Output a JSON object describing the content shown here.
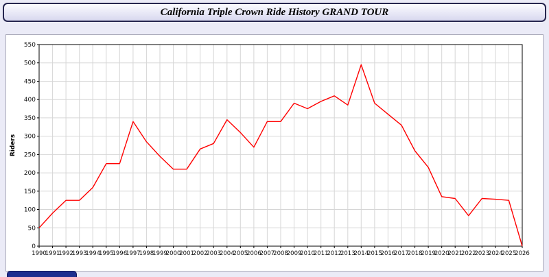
{
  "header": {
    "title": "California Triple Crown Ride History GRAND TOUR"
  },
  "colors": {
    "page_bg": "#ebebf7",
    "accent_navy": "#1e2f8f",
    "line": "#ff0000",
    "grid": "#d6d6d6"
  },
  "chart_data": {
    "type": "line",
    "title": "California Triple Crown Ride History GRAND TOUR",
    "xlabel": "",
    "ylabel": "Riders",
    "ylim": [
      0,
      550
    ],
    "ytick_step": 50,
    "grid": true,
    "legend": "none",
    "line_color": "#ff0000",
    "grid_color": "#d6d6d6",
    "x": [
      1990,
      1991,
      1992,
      1993,
      1994,
      1995,
      1996,
      1997,
      1998,
      1999,
      2000,
      2001,
      2002,
      2003,
      2004,
      2005,
      2006,
      2007,
      2008,
      2009,
      2010,
      2011,
      2012,
      2013,
      2014,
      2015,
      2016,
      2017,
      2018,
      2019,
      2020,
      2021,
      2022,
      2023,
      2024,
      2025,
      2026
    ],
    "values": [
      50,
      90,
      125,
      125,
      160,
      225,
      225,
      340,
      285,
      245,
      210,
      210,
      265,
      280,
      345,
      310,
      270,
      340,
      340,
      390,
      375,
      395,
      410,
      385,
      495,
      390,
      360,
      330,
      260,
      215,
      135,
      130,
      83,
      130,
      128,
      125,
      0
    ]
  }
}
